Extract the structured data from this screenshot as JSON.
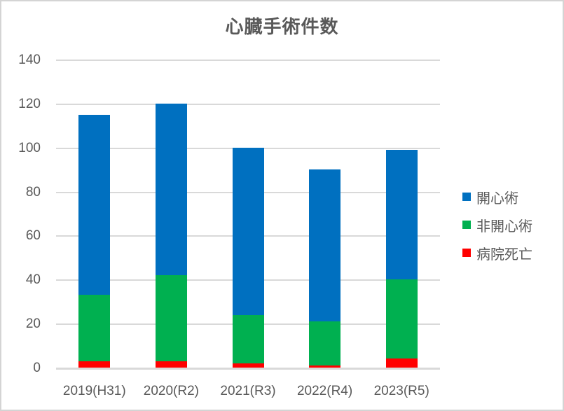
{
  "title": "心臓手術件数",
  "colors": {
    "open_heart": "#0070C0",
    "non_open_heart": "#00B050",
    "hospital_death": "#FF0000",
    "gridline": "#D9D9D9",
    "axis_line": "#D9D9D9",
    "text": "#595959",
    "border": "#D4D4D4",
    "background": "#FFFFFF"
  },
  "chart_data": {
    "type": "bar",
    "stacked": true,
    "title": "心臓手術件数",
    "categories": [
      "2019(H31)",
      "2020(R2)",
      "2021(R3)",
      "2022(R4)",
      "2023(R5)"
    ],
    "series": [
      {
        "name": "開心術",
        "key": "open-heart",
        "color": "#0070C0",
        "values": [
          82,
          78,
          76,
          69,
          59
        ]
      },
      {
        "name": "非開心術",
        "key": "non-open-heart",
        "color": "#00B050",
        "values": [
          30,
          39,
          22,
          20,
          36
        ]
      },
      {
        "name": "病院死亡",
        "key": "hospital-death",
        "color": "#FF0000",
        "values": [
          3,
          3,
          2,
          1,
          4
        ]
      }
    ],
    "stack_order_bottom_to_top": [
      "病院死亡",
      "非開心術",
      "開心術"
    ],
    "totals": [
      115,
      120,
      100,
      90,
      99
    ],
    "xlabel": "",
    "ylabel": "",
    "y_axis": {
      "min": 0,
      "max": 140,
      "step": 20,
      "ticks": [
        0,
        20,
        40,
        60,
        80,
        100,
        120,
        140
      ]
    },
    "grid": true,
    "legend_position": "right"
  }
}
